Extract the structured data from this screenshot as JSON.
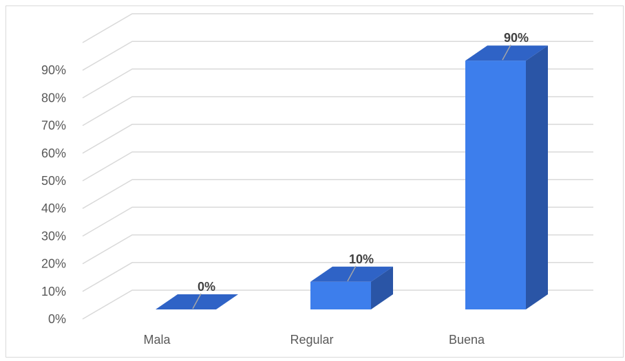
{
  "chart_data": {
    "type": "bar",
    "style": "3d-column",
    "categories": [
      "Mala",
      "Regular",
      "Buena"
    ],
    "values": [
      0,
      10,
      90
    ],
    "data_labels": [
      "0%",
      "10%",
      "90%"
    ],
    "ylim": [
      0,
      90
    ],
    "ytick_values": [
      0,
      10,
      20,
      30,
      40,
      50,
      60,
      70,
      80,
      90
    ],
    "ytick_labels": [
      "0%",
      "10%",
      "20%",
      "30%",
      "40%",
      "50%",
      "60%",
      "70%",
      "80%",
      "90%"
    ],
    "grid": true,
    "legend": "none",
    "title": "",
    "xlabel": "",
    "ylabel": ""
  },
  "colors": {
    "bar_front": "#3d7eec",
    "bar_top": "#2f63c6",
    "bar_side": "#2a55a6",
    "grid": "#d9d9d9",
    "leader_line": "#a6a6a6"
  }
}
